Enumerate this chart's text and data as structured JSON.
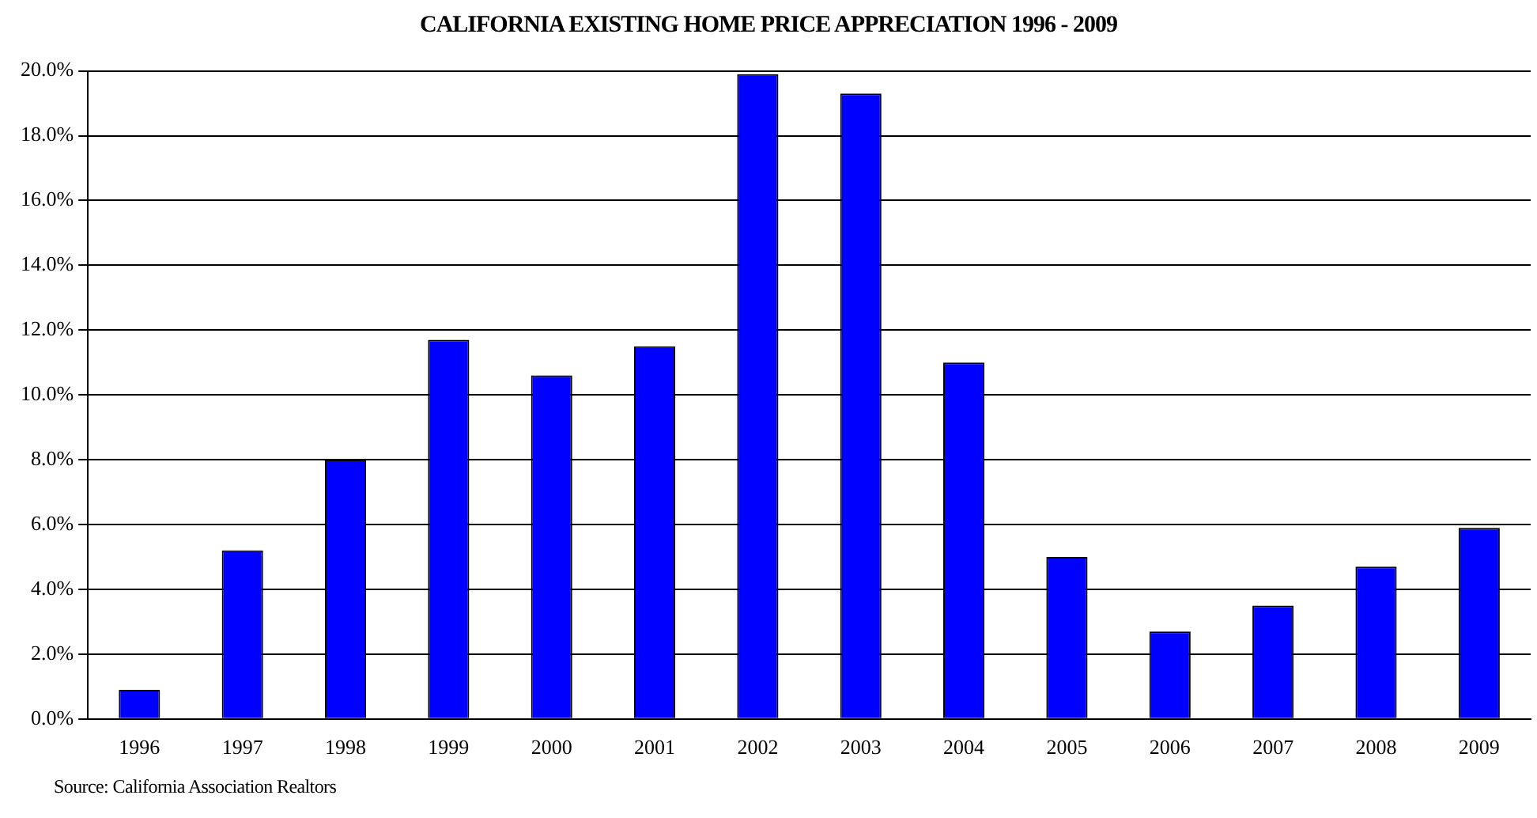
{
  "chart_data": {
    "type": "bar",
    "title": "CALIFORNIA EXISTING HOME PRICE APPRECIATION 1996 - 2009",
    "categories": [
      "1996",
      "1997",
      "1998",
      "1999",
      "2000",
      "2001",
      "2002",
      "2003",
      "2004",
      "2005",
      "2006",
      "2007",
      "2008",
      "2009"
    ],
    "values": [
      0.9,
      5.2,
      8.0,
      11.7,
      10.6,
      11.5,
      19.9,
      19.3,
      11.0,
      5.0,
      2.7,
      3.5,
      4.7,
      5.9
    ],
    "color": "#0000ff",
    "ylim": [
      0,
      20
    ],
    "yticks": [
      {
        "value": 0,
        "label": "0.0%"
      },
      {
        "value": 2,
        "label": "2.0%"
      },
      {
        "value": 4,
        "label": "4.0%"
      },
      {
        "value": 6,
        "label": "6.0%"
      },
      {
        "value": 8,
        "label": "8.0%"
      },
      {
        "value": 10,
        "label": "10.0%"
      },
      {
        "value": 12,
        "label": "12.0%"
      },
      {
        "value": 14,
        "label": "14.0%"
      },
      {
        "value": 16,
        "label": "16.0%"
      },
      {
        "value": 18,
        "label": "18.0%"
      },
      {
        "value": 20,
        "label": "20.0%"
      }
    ],
    "grid": "y",
    "annotations": [
      "Source: California Association Realtors"
    ]
  }
}
